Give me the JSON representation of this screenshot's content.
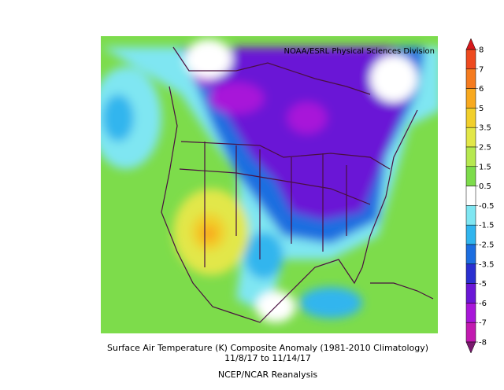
{
  "header": {
    "credit": "NOAA/ESRL Physical Sciences Division"
  },
  "colorbar": {
    "labels": [
      8,
      7,
      6,
      5,
      3.5,
      2.5,
      1.5,
      0.5,
      -0.5,
      -1.5,
      -2.5,
      -3.5,
      -5,
      -6,
      -7,
      -8
    ],
    "colors": [
      "#d7191c",
      "#ee4a1f",
      "#f57b1f",
      "#f8a91f",
      "#f1cf2b",
      "#e2e748",
      "#b6e850",
      "#7ddc4b",
      "#ffffff",
      "#7fe6f2",
      "#31b5ee",
      "#1c6ee0",
      "#2a2fd0",
      "#6a17d6",
      "#a817d9",
      "#c21ab0",
      "#7a1a6e"
    ]
  },
  "caption": {
    "line1": "Surface Air Temperature (K) Composite Anomaly (1981-2010 Climatology)",
    "line2": "11/8/17  to 11/14/17",
    "line3": "NCEP/NCAR Reanalysis"
  }
}
